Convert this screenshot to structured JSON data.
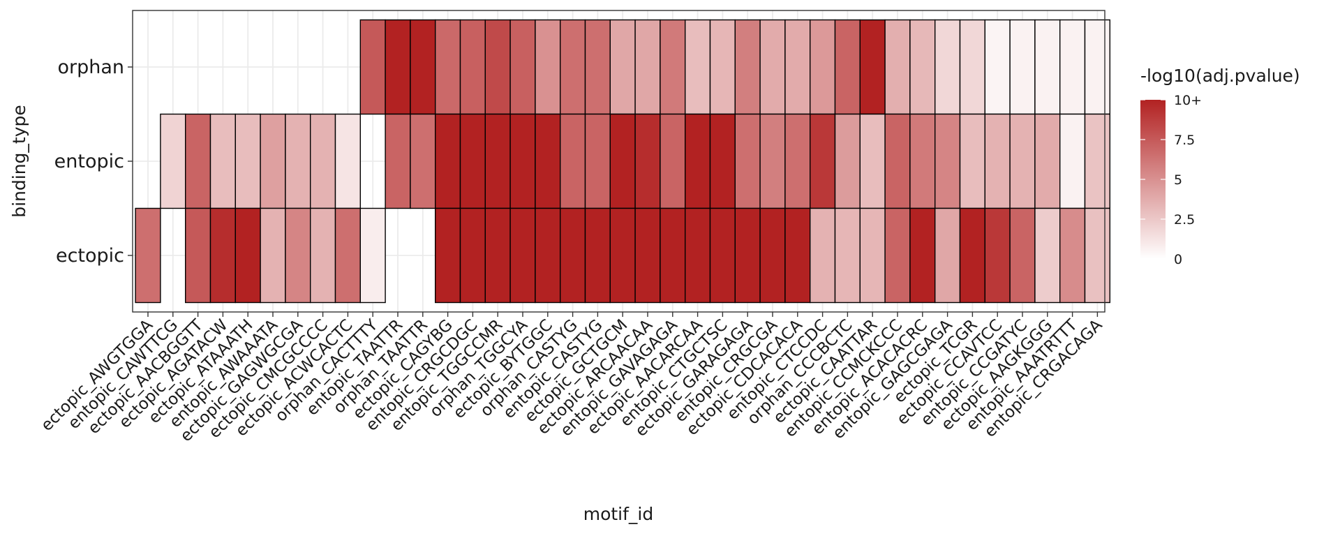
{
  "chart_data": {
    "type": "heatmap",
    "xlabel": "motif_id",
    "ylabel": "binding_type",
    "legend": {
      "title": "-log10(adj.pvalue)",
      "ticks": [
        "0",
        "2.5",
        "5",
        "7.5",
        "10+"
      ],
      "range": [
        0,
        10
      ],
      "color_low": "#ffffff",
      "color_high": "#b22222",
      "placement": "right"
    },
    "grid": true,
    "rows": [
      "orphan",
      "entopic",
      "ectopic"
    ],
    "categories": [
      "ectopic_AWGTGGA",
      "entopic_CAWTTCG",
      "ectopic_AACBGGTT",
      "ectopic_AGATACW",
      "ectopic_ATAAATH",
      "entopic_AWAAATA",
      "ectopic_GAGWGCGA",
      "ectopic_CMCGCCCC",
      "ectopic_ACWCACTC",
      "orphan_CACTTTY",
      "entopic_TAATTR",
      "orphan_TAATTR",
      "ectopic_CAGYBG",
      "entopic_CRGCDGC",
      "entopic_TGGCCMR",
      "orphan_TGGCYA",
      "ectopic_BYTGGC",
      "orphan_CASTYG",
      "entopic_CASTYG",
      "ectopic_GCTGCM",
      "ectopic_ARCAACAA",
      "entopic_GAVAGAGA",
      "ectopic_AACARCAA",
      "entopic_CTGCTSC",
      "ectopic_GARAGAGA",
      "entopic_CRGCGA",
      "ectopic_CDCACACA",
      "entopic_CTCCDC",
      "orphan_CCCBCTC",
      "ectopic_CAATTAR",
      "entopic_CCMCKCCC",
      "entopic_ACACACRC",
      "entopic_GAGCGAGA",
      "ectopic_TCGR",
      "ectopic_CCAVTCC",
      "entopic_CCGATYC",
      "ectopic_AAGKGGG",
      "entopic_AAATRTTT",
      "entopic_CRGACAGA"
    ],
    "values": [
      [
        null,
        null,
        null,
        null,
        null,
        null,
        null,
        null,
        null,
        7.5,
        10,
        10,
        6.8,
        7.2,
        8.2,
        7.2,
        5.0,
        6.5,
        6.5,
        4.0,
        4.0,
        6.0,
        3.0,
        3.3,
        5.8,
        3.8,
        3.8,
        4.6,
        7.0,
        10,
        3.6,
        3.2,
        1.8,
        1.8,
        0.5,
        0.6,
        0.6,
        0.6,
        0.6
      ],
      [
        null,
        2.0,
        7.0,
        3.0,
        3.0,
        4.3,
        3.5,
        3.5,
        1.2,
        null,
        7.0,
        6.5,
        10,
        10,
        10,
        10,
        10,
        7.0,
        7.0,
        10,
        9.5,
        7.0,
        10,
        10,
        6.5,
        5.8,
        6.5,
        9.0,
        4.5,
        3.0,
        7.0,
        6.0,
        5.5,
        3.0,
        3.5,
        3.5,
        3.8,
        0.6,
        2.7
      ],
      [
        6.5,
        null,
        7.5,
        9.5,
        10,
        3.5,
        5.5,
        3.5,
        6.5,
        0.8,
        null,
        null,
        10,
        10,
        10,
        10,
        10,
        10,
        10,
        10,
        10,
        10,
        10,
        10,
        10,
        10,
        10,
        3.5,
        3.3,
        3.3,
        7.0,
        10,
        4.0,
        10,
        9.0,
        7.0,
        2.3,
        5.2,
        2.8
      ]
    ]
  }
}
